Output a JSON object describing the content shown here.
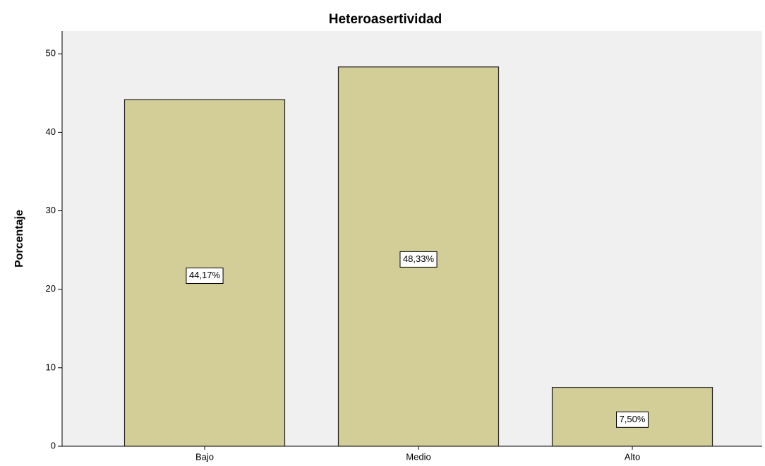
{
  "chart_data": {
    "type": "bar",
    "title": "Heteroasertividad",
    "y_label": "Porcentaje",
    "categories": [
      "Bajo",
      "Medio",
      "Alto"
    ],
    "values": [
      44.17,
      48.33,
      7.5
    ],
    "value_labels": [
      "44,17%",
      "48,33%",
      "7,50%"
    ],
    "color": "#d3ce97",
    "ylim": [
      0,
      52.9
    ],
    "yticks": [
      0,
      10,
      20,
      30,
      40,
      50
    ],
    "grid": false
  }
}
